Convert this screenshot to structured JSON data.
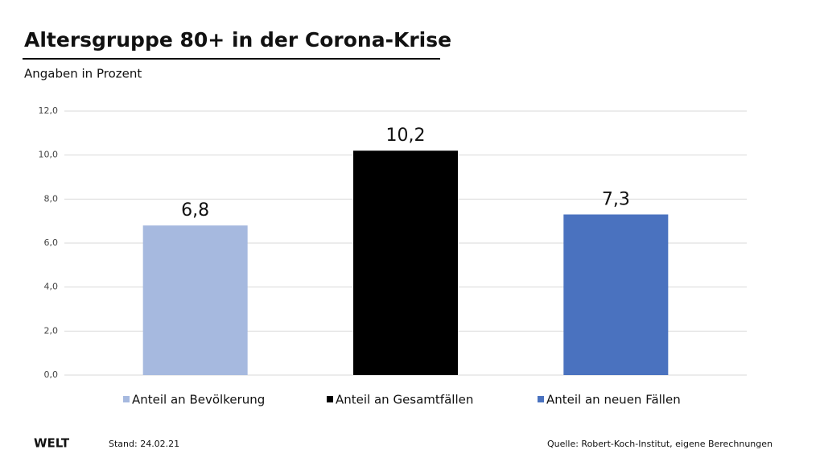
{
  "chart_data": {
    "type": "bar",
    "title": "Altersgruppe 80+ in der Corona-Krise",
    "subtitle": "Angaben in Prozent",
    "categories": [
      null
    ],
    "series": [
      {
        "name": "Anteil an Bevölkerung",
        "color": "#a6b9df",
        "values": [
          6.8
        ],
        "value_labels": [
          "6,8"
        ]
      },
      {
        "name": "Anteil an Gesamtfällen",
        "color": "#000000",
        "values": [
          10.2
        ],
        "value_labels": [
          "10,2"
        ]
      },
      {
        "name": "Anteil an neuen Fällen",
        "color": "#4a72bf",
        "values": [
          7.3
        ],
        "value_labels": [
          "7,3"
        ]
      }
    ],
    "ylim": [
      0,
      12
    ],
    "yticks": [
      {
        "value": 0,
        "label": "0,0"
      },
      {
        "value": 2,
        "label": "2,0"
      },
      {
        "value": 4,
        "label": "4,0"
      },
      {
        "value": 6,
        "label": "6,0"
      },
      {
        "value": 8,
        "label": "8,0"
      },
      {
        "value": 10,
        "label": "10,0"
      },
      {
        "value": 12,
        "label": "12,0"
      }
    ],
    "grid": true,
    "legend": "bottom",
    "logo": "WELT",
    "stand": "Stand:  24.02.21",
    "source": "Quelle: Robert-Koch-Institut, eigene Berechnungen"
  }
}
